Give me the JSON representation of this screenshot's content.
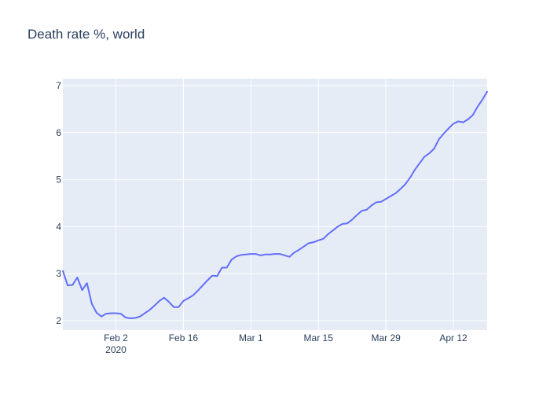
{
  "chart_data": {
    "type": "line",
    "title": "Death rate %, world",
    "xlabel": "",
    "ylabel": "",
    "x_tick_labels": [
      "Feb 2",
      "Feb 16",
      "Mar 1",
      "Mar 15",
      "Mar 29",
      "Apr 12"
    ],
    "x_tick_year": "2020",
    "x_tick_dates": [
      "2020-02-02",
      "2020-02-16",
      "2020-03-01",
      "2020-03-15",
      "2020-03-29",
      "2020-04-12"
    ],
    "xlim": [
      "2020-01-22",
      "2020-04-19"
    ],
    "y_ticks": [
      2,
      3,
      4,
      5,
      6,
      7
    ],
    "ylim": [
      1.8,
      7.15
    ],
    "grid": true,
    "colors": {
      "line": "#636efa",
      "plot_bg": "#e5ecf6",
      "grid": "#ffffff",
      "text": "#2a3f5f"
    },
    "series": [
      {
        "x": [
          "2020-01-22",
          "2020-01-23",
          "2020-01-24",
          "2020-01-25",
          "2020-01-26",
          "2020-01-27",
          "2020-01-28",
          "2020-01-29",
          "2020-01-30",
          "2020-01-31",
          "2020-02-01",
          "2020-02-02",
          "2020-02-03",
          "2020-02-04",
          "2020-02-05",
          "2020-02-06",
          "2020-02-07",
          "2020-02-08",
          "2020-02-09",
          "2020-02-10",
          "2020-02-11",
          "2020-02-12",
          "2020-02-13",
          "2020-02-14",
          "2020-02-15",
          "2020-02-16",
          "2020-02-17",
          "2020-02-18",
          "2020-02-19",
          "2020-02-20",
          "2020-02-21",
          "2020-02-22",
          "2020-02-23",
          "2020-02-24",
          "2020-02-25",
          "2020-02-26",
          "2020-02-27",
          "2020-02-28",
          "2020-02-29",
          "2020-03-01",
          "2020-03-02",
          "2020-03-03",
          "2020-03-04",
          "2020-03-05",
          "2020-03-06",
          "2020-03-07",
          "2020-03-08",
          "2020-03-09",
          "2020-03-10",
          "2020-03-11",
          "2020-03-12",
          "2020-03-13",
          "2020-03-14",
          "2020-03-15",
          "2020-03-16",
          "2020-03-17",
          "2020-03-18",
          "2020-03-19",
          "2020-03-20",
          "2020-03-21",
          "2020-03-22",
          "2020-03-23",
          "2020-03-24",
          "2020-03-25",
          "2020-03-26",
          "2020-03-27",
          "2020-03-28",
          "2020-03-29",
          "2020-03-30",
          "2020-03-31",
          "2020-04-01",
          "2020-04-02",
          "2020-04-03",
          "2020-04-04",
          "2020-04-05",
          "2020-04-06",
          "2020-04-07",
          "2020-04-08",
          "2020-04-09",
          "2020-04-10",
          "2020-04-11",
          "2020-04-12",
          "2020-04-13",
          "2020-04-14",
          "2020-04-15",
          "2020-04-16",
          "2020-04-17",
          "2020-04-18",
          "2020-04-19"
        ],
        "values": [
          3.06,
          2.75,
          2.76,
          2.92,
          2.65,
          2.8,
          2.36,
          2.17,
          2.09,
          2.15,
          2.16,
          2.16,
          2.15,
          2.07,
          2.05,
          2.06,
          2.09,
          2.16,
          2.23,
          2.32,
          2.42,
          2.49,
          2.4,
          2.29,
          2.29,
          2.42,
          2.48,
          2.54,
          2.64,
          2.75,
          2.86,
          2.96,
          2.95,
          3.13,
          3.13,
          3.3,
          3.37,
          3.4,
          3.41,
          3.42,
          3.42,
          3.39,
          3.41,
          3.41,
          3.42,
          3.42,
          3.39,
          3.36,
          3.45,
          3.51,
          3.58,
          3.65,
          3.67,
          3.71,
          3.74,
          3.84,
          3.92,
          4.0,
          4.06,
          4.07,
          4.15,
          4.25,
          4.34,
          4.36,
          4.45,
          4.52,
          4.53,
          4.59,
          4.65,
          4.71,
          4.8,
          4.9,
          5.04,
          5.21,
          5.35,
          5.49,
          5.56,
          5.66,
          5.86,
          5.98,
          6.09,
          6.19,
          6.24,
          6.22,
          6.28,
          6.37,
          6.55,
          6.7,
          6.87
        ]
      }
    ]
  }
}
